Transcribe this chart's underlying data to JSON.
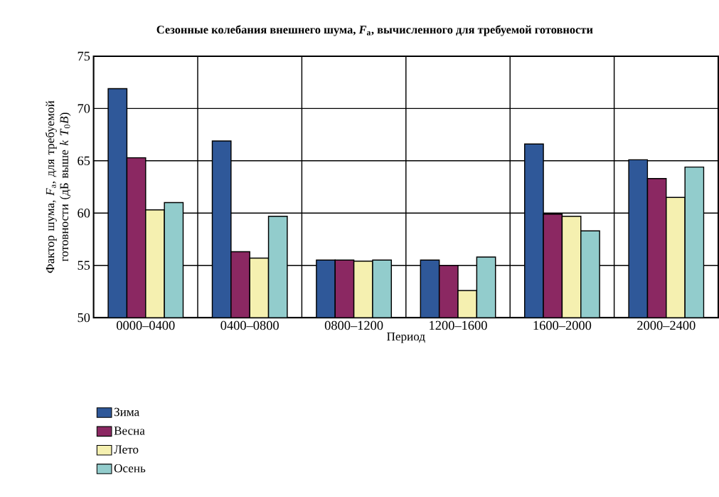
{
  "chart_data": {
    "type": "bar",
    "title": "Сезонные колебания внешнего шума, *F*$_{a}$, вычисленного для требуемой готовности",
    "xlabel": "Период",
    "ylabel": "Фактор шума, *F*$_{a}$, для требуемой готовности (дБ выше *k* *T*$_{0}$*B*)",
    "categories": [
      "0000–0400",
      "0400–0800",
      "0800–1200",
      "1200–1600",
      "1600–2000",
      "2000–2400"
    ],
    "series": [
      {
        "name": "Зима",
        "color": "#2f5899",
        "values": [
          71.9,
          66.9,
          55.5,
          55.5,
          66.6,
          65.1
        ]
      },
      {
        "name": "Весна",
        "color": "#8b2862",
        "values": [
          65.3,
          56.3,
          55.5,
          55.0,
          59.9,
          63.3
        ]
      },
      {
        "name": "Лето",
        "color": "#f5f0b0",
        "values": [
          60.3,
          55.7,
          55.4,
          52.6,
          59.7,
          61.5
        ]
      },
      {
        "name": "Осень",
        "color": "#92cccc",
        "values": [
          61.0,
          59.7,
          55.5,
          55.8,
          58.3,
          64.4
        ]
      }
    ],
    "ylim": [
      50,
      75
    ],
    "yticks": [
      50,
      55,
      60,
      65,
      70,
      75
    ],
    "grid": true,
    "legend": "bottom"
  }
}
